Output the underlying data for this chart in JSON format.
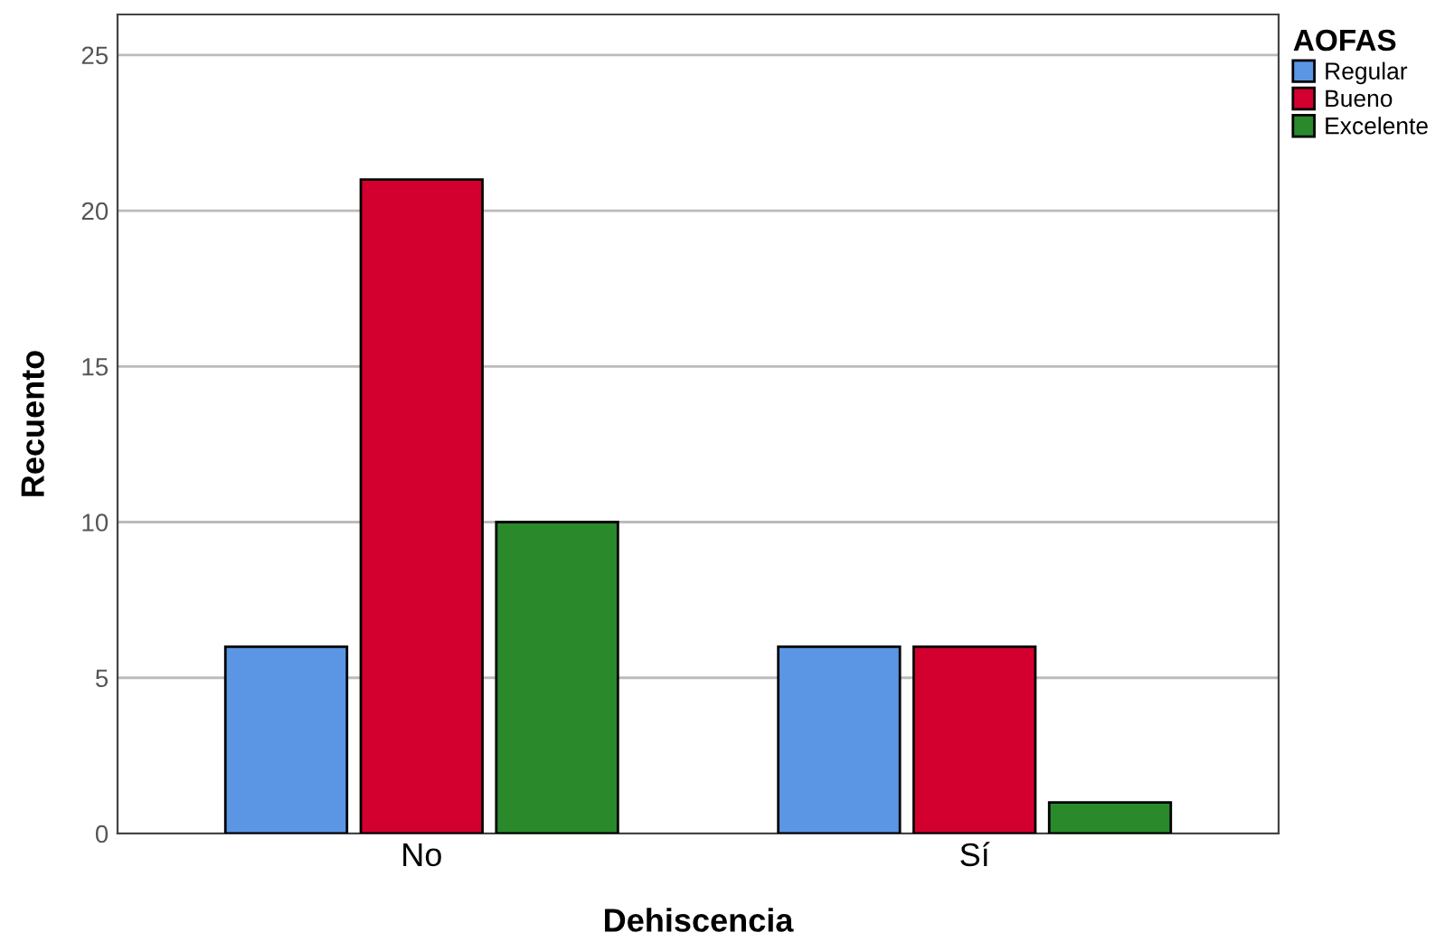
{
  "chart_data": {
    "type": "bar",
    "xlabel": "Dehiscencia",
    "ylabel": "Recuento",
    "legend_title": "AOFAS",
    "categories": [
      "No",
      "Sí"
    ],
    "series": [
      {
        "name": "Regular",
        "color": "#5a96e3",
        "values": [
          6,
          6
        ]
      },
      {
        "name": "Bueno",
        "color": "#d3002f",
        "values": [
          21,
          6
        ]
      },
      {
        "name": "Excelente",
        "color": "#2a8a2b",
        "values": [
          10,
          1
        ]
      }
    ],
    "ylim": [
      0,
      26.3
    ],
    "yticks": [
      0,
      5,
      10,
      15,
      20,
      25
    ],
    "grid": "y",
    "legend": "top right"
  }
}
